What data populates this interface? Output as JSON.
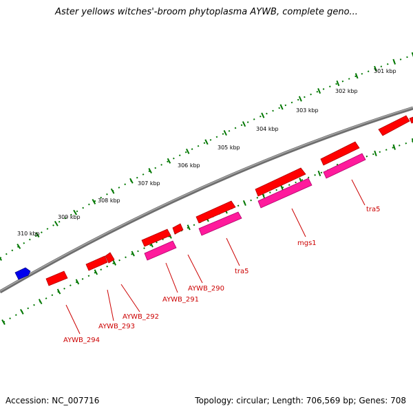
{
  "title": "Aster yellows witches'-broom phytoplasma AYWB, complete geno...",
  "footer": {
    "accession": "Accession: NC_007716",
    "topology": "Topology: circular; Length: 706,569 bp; Genes: 708"
  },
  "ticks": [
    {
      "label": "301 kbp"
    },
    {
      "label": "302 kbp"
    },
    {
      "label": "303 kbp"
    },
    {
      "label": "304 kbp"
    },
    {
      "label": "305 kbp"
    },
    {
      "label": "306 kbp"
    },
    {
      "label": "307 kbp"
    },
    {
      "label": "308 kbp"
    },
    {
      "label": "309 kbp"
    },
    {
      "label": "310 kbp"
    }
  ],
  "gene_labels": [
    {
      "name": "tra5"
    },
    {
      "name": "mgs1"
    },
    {
      "name": "tra5"
    },
    {
      "name": "AYWB_290"
    },
    {
      "name": "AYWB_291"
    },
    {
      "name": "AYWB_292"
    },
    {
      "name": "AYWB_293"
    },
    {
      "name": "AYWB_294"
    }
  ],
  "colors": {
    "gene": "#ff0000",
    "cds": "#ff1a9c",
    "other_feature": "#0000ee",
    "backbone": "#808080",
    "tick": "#007700",
    "label": "#cc0000"
  }
}
